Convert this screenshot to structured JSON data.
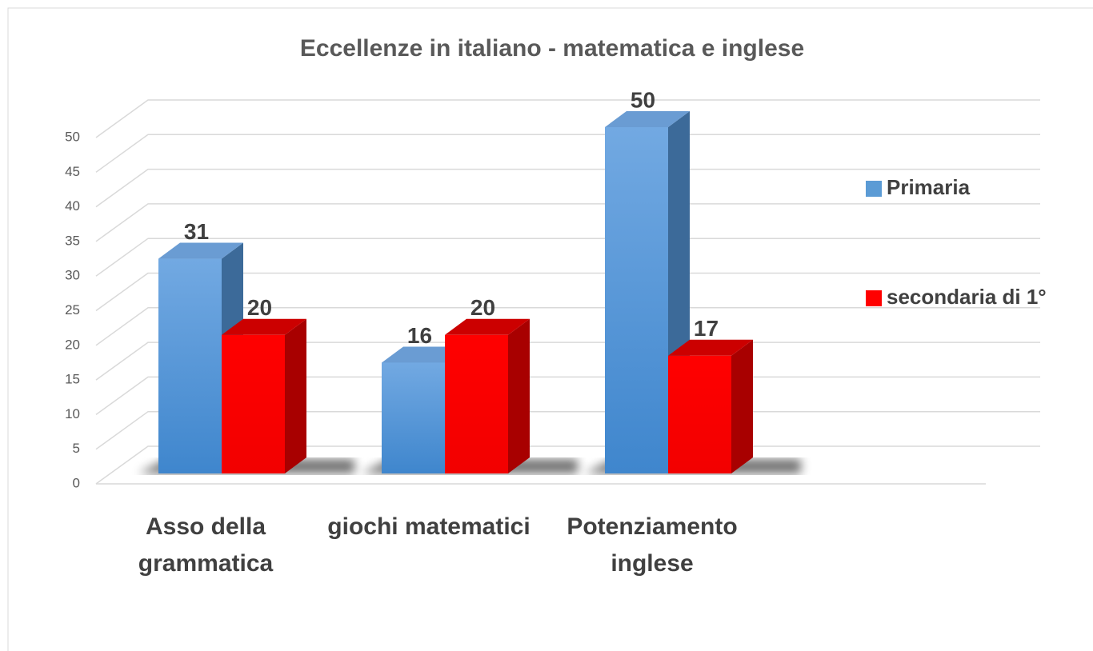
{
  "chart_data": {
    "type": "bar3d",
    "title": "Eccellenze in italiano - matematica e inglese",
    "categories": [
      "Asso della grammatica",
      "giochi matematici",
      "Potenziamento inglese"
    ],
    "series": [
      {
        "name": "Primaria",
        "color": "#5b9bd5",
        "values": [
          31,
          16,
          50
        ]
      },
      {
        "name": "secondaria di 1°",
        "color": "#ff0000",
        "values": [
          20,
          20,
          17
        ]
      }
    ],
    "ylim": [
      0,
      50
    ],
    "yticks": [
      0,
      5,
      10,
      15,
      20,
      25,
      30,
      35,
      40,
      45,
      50
    ],
    "grid": true,
    "legend": "right"
  }
}
